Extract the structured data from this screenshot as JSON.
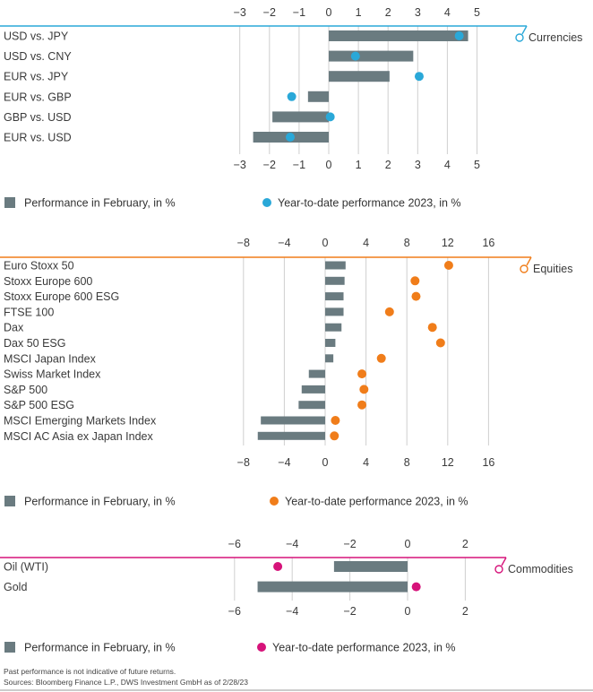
{
  "chart_data": [
    {
      "type": "bar",
      "section_label": "Currencies",
      "accent_color": "#2aa8d8",
      "bar_color": "#6a7b80",
      "xlim": [
        -3,
        5
      ],
      "ticks": [
        "−3",
        "−2",
        "−1",
        "0",
        "1",
        "2",
        "3",
        "4",
        "5"
      ],
      "tick_values": [
        -3,
        -2,
        -1,
        0,
        1,
        2,
        3,
        4,
        5
      ],
      "categories": [
        "USD vs. JPY",
        "USD vs. CNY",
        "EUR vs. JPY",
        "EUR vs. GBP",
        "GBP vs. USD",
        "EUR vs. USD"
      ],
      "series": [
        {
          "name": "Performance in February, in %",
          "values": [
            4.7,
            2.85,
            2.05,
            -0.7,
            -1.9,
            -2.55
          ]
        },
        {
          "name": "Year-to-date performance 2023, in %",
          "values": [
            4.4,
            0.9,
            3.05,
            -1.25,
            0.05,
            -1.3
          ]
        }
      ]
    },
    {
      "type": "bar",
      "section_label": "Equities",
      "accent_color": "#f07d1a",
      "bar_color": "#6a7b80",
      "xlim": [
        -8,
        16
      ],
      "ticks": [
        "−8",
        "−4",
        "0",
        "4",
        "8",
        "12",
        "16"
      ],
      "tick_values": [
        -8,
        -4,
        0,
        4,
        8,
        12,
        16
      ],
      "categories": [
        "Euro Stoxx 50",
        "Stoxx Europe 600",
        "Stoxx Europe 600 ESG",
        "FTSE 100",
        "Dax",
        "Dax 50 ESG",
        "MSCI Japan Index",
        "Swiss Market Index",
        "S&P 500",
        "S&P 500 ESG",
        "MSCI Emerging Markets Index",
        "MSCI AC Asia ex Japan Index"
      ],
      "series": [
        {
          "name": "Performance in February, in %",
          "values": [
            2.0,
            1.9,
            1.8,
            1.8,
            1.6,
            1.0,
            0.8,
            -1.6,
            -2.3,
            -2.6,
            -6.3,
            -6.6
          ]
        },
        {
          "name": "Year-to-date performance 2023, in %",
          "values": [
            12.1,
            8.8,
            8.9,
            6.3,
            10.5,
            11.3,
            5.5,
            3.6,
            3.8,
            3.6,
            1.0,
            0.9
          ]
        }
      ]
    },
    {
      "type": "bar",
      "section_label": "Commodities",
      "accent_color": "#d6137a",
      "bar_color": "#6a7b80",
      "xlim": [
        -6,
        2
      ],
      "ticks": [
        "−6",
        "−4",
        "−2",
        "0",
        "2"
      ],
      "tick_values": [
        -6,
        -4,
        -2,
        0,
        2
      ],
      "categories": [
        "Oil (WTI)",
        "Gold"
      ],
      "series": [
        {
          "name": "Performance in February, in %",
          "values": [
            -2.55,
            -5.2
          ]
        },
        {
          "name": "Year-to-date performance 2023, in %",
          "values": [
            -4.5,
            0.3
          ]
        }
      ]
    }
  ],
  "footnote": {
    "line1": "Past performance is not indicative of future returns.",
    "line2": "Sources: Bloomberg Finance L.P., DWS Investment GmbH as of 2/28/23"
  }
}
